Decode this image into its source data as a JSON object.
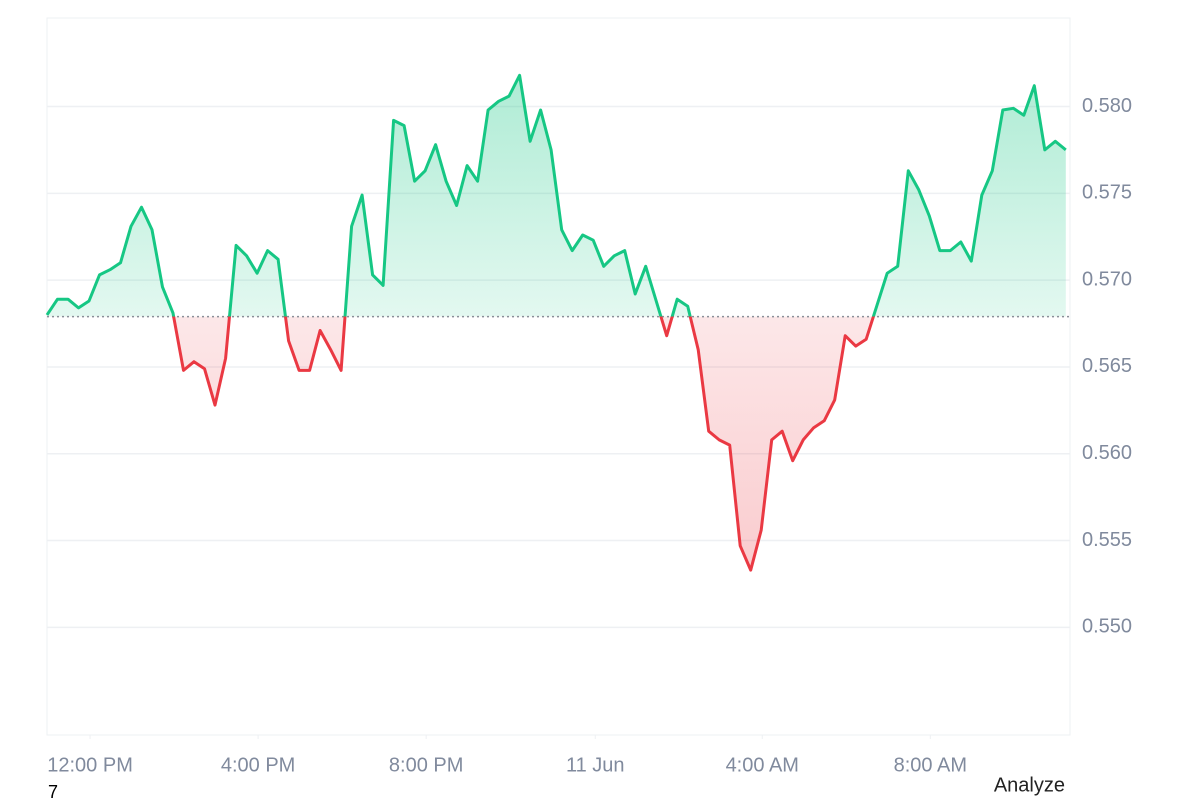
{
  "chart_data": {
    "type": "line",
    "series": [
      {
        "name": "Price",
        "color": "#16c784",
        "negative_color": "#ea3943",
        "values": [
          0.568,
          0.5689,
          0.5689,
          0.5684,
          0.5688,
          0.5703,
          0.5706,
          0.571,
          0.5731,
          0.5742,
          0.5729,
          0.5696,
          0.5681,
          0.5648,
          0.5653,
          0.5649,
          0.5628,
          0.5655,
          0.572,
          0.5714,
          0.5704,
          0.5717,
          0.5712,
          0.5665,
          0.5648,
          0.5648,
          0.5671,
          0.566,
          0.5648,
          0.5731,
          0.5749,
          0.5703,
          0.5697,
          0.5792,
          0.5789,
          0.5757,
          0.5763,
          0.5778,
          0.5757,
          0.5743,
          0.5766,
          0.5757,
          0.5798,
          0.5803,
          0.5806,
          0.5818,
          0.578,
          0.5798,
          0.5775,
          0.5729,
          0.5717,
          0.5726,
          0.5723,
          0.5708,
          0.5714,
          0.5717,
          0.5692,
          0.5708,
          0.5688,
          0.5668,
          0.5689,
          0.5685,
          0.566,
          0.5613,
          0.5608,
          0.5605,
          0.5547,
          0.5533,
          0.5556,
          0.5608,
          0.5613,
          0.5596,
          0.5608,
          0.5615,
          0.5619,
          0.5631,
          0.5668,
          0.5662,
          0.5666,
          0.5685,
          0.5704,
          0.5708,
          0.5763,
          0.5752,
          0.5737,
          0.5717,
          0.5717,
          0.5722,
          0.5711,
          0.5749,
          0.5763,
          0.5798,
          0.5799,
          0.5795,
          0.5812,
          0.5775,
          0.578,
          0.5775
        ]
      }
    ],
    "baseline": 0.5679,
    "xlim": [
      0,
      97.4
    ],
    "xticks": [
      {
        "value": 4.1,
        "label": "12:00 PM"
      },
      {
        "value": 20.1,
        "label": "4:00 PM"
      },
      {
        "value": 36.1,
        "label": "8:00 PM"
      },
      {
        "value": 52.2,
        "label": "11 Jun"
      },
      {
        "value": 68.1,
        "label": "4:00 AM"
      },
      {
        "value": 84.1,
        "label": "8:00 AM"
      }
    ],
    "ylim": [
      0.5438,
      0.5851
    ],
    "yticks": [
      {
        "value": 0.55,
        "label": "0.550"
      },
      0.555,
      {
        "value": 0.56,
        "label": "0.560"
      },
      0.565,
      {
        "value": 0.57,
        "label": "0.570"
      },
      0.575,
      {
        "value": 0.58,
        "label": "0.580"
      }
    ],
    "grid": true
  },
  "footer": {
    "logo": "7",
    "button": "Analyze"
  }
}
